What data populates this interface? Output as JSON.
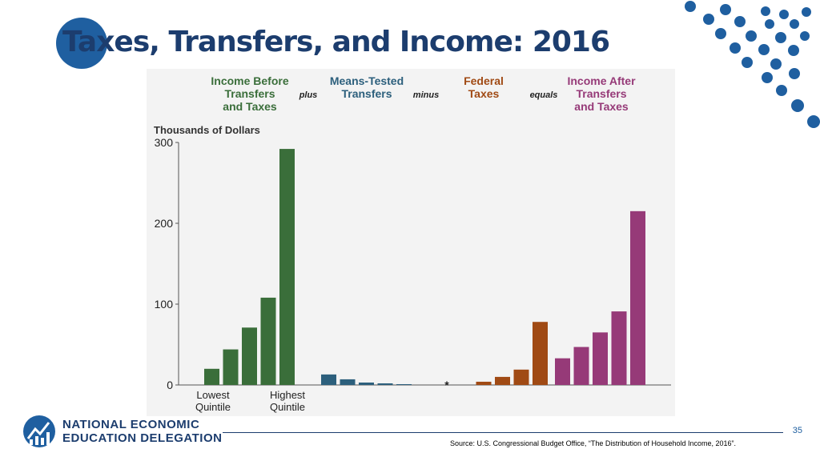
{
  "slide": {
    "title": "Taxes, Transfers, and Income: 2016",
    "page_number": "35",
    "source": "Source: U.S. Congressional Budget Office, “The Distribution of Household Income, 2016”.",
    "org_line1": "NATIONAL ECONOMIC",
    "org_line2": "EDUCATION DELEGATION",
    "colors": {
      "title": "#1c3d6e",
      "accent": "#1f5fa0"
    }
  },
  "chart_data": {
    "type": "bar",
    "ylabel": "Thousands of Dollars",
    "ylim": [
      0,
      300
    ],
    "yticks": [
      0,
      100,
      200,
      300
    ],
    "operators": [
      "plus",
      "minus",
      "equals"
    ],
    "xlabels": [
      "Lowest\nQuintile",
      "Highest\nQuintile"
    ],
    "annotation": "*",
    "series": [
      {
        "name": "Income Before\nTransfers\nand Taxes",
        "color": "#3a6e3a",
        "values": [
          20,
          44,
          71,
          108,
          292
        ]
      },
      {
        "name": "Means-Tested\nTransfers",
        "color": "#2c5f7c",
        "values": [
          13,
          7,
          3,
          2,
          1
        ]
      },
      {
        "name": "Federal\nTaxes",
        "color": "#a04a14",
        "values": [
          0,
          4,
          10,
          19,
          78
        ]
      },
      {
        "name": "Income After\nTransfers\nand Taxes",
        "color": "#963a78",
        "values": [
          33,
          47,
          65,
          91,
          215
        ]
      }
    ]
  }
}
